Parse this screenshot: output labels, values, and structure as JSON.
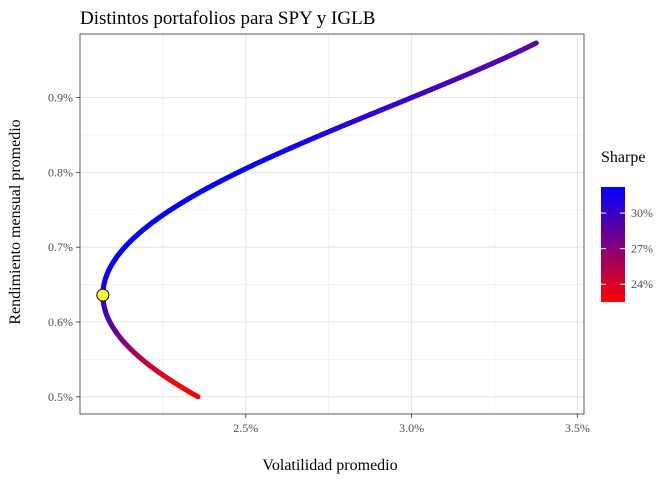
{
  "chart_data": {
    "type": "line",
    "title": "Distintos portafolios para SPY y IGLB",
    "xlabel": "Volatilidad promedio",
    "ylabel": "Rendimiento mensual promedio",
    "x_ticks": [
      {
        "value": 0.025,
        "label": "2.5%"
      },
      {
        "value": 0.03,
        "label": "3.0%"
      },
      {
        "value": 0.035,
        "label": "3.5%"
      }
    ],
    "y_ticks": [
      {
        "value": 0.005,
        "label": "0.5%"
      },
      {
        "value": 0.006,
        "label": "0.6%"
      },
      {
        "value": 0.007,
        "label": "0.7%"
      },
      {
        "value": 0.008,
        "label": "0.8%"
      },
      {
        "value": 0.009,
        "label": "0.9%"
      }
    ],
    "xlim": [
      0.02,
      0.0352
    ],
    "ylim": [
      0.00477,
      0.00985
    ],
    "grid": true,
    "frontier": {
      "min_variance": {
        "x": 0.02069,
        "y": 0.00636
      },
      "start": {
        "x": 0.02368,
        "y": 0.005
      },
      "end": {
        "x": 0.03447,
        "y": 0.00973
      },
      "curvature_x": [
        {
          "x": 0.021,
          "y": 0.0067
        },
        {
          "x": 0.025,
          "y": 0.00805
        },
        {
          "x": 0.03,
          "y": 0.009
        }
      ]
    },
    "highlight_point": {
      "x": 0.02069,
      "y": 0.00636,
      "color": "#FFFF33"
    },
    "legend": {
      "title": "Sharpe",
      "position": "right",
      "color_low": "#FF0000",
      "color_high": "#0000FF",
      "sharpe_min": 0.225,
      "sharpe_max": 0.322,
      "ticks": [
        {
          "value": 0.24,
          "label": "24%"
        },
        {
          "value": 0.27,
          "label": "27%"
        },
        {
          "value": 0.3,
          "label": "30%"
        }
      ]
    }
  }
}
